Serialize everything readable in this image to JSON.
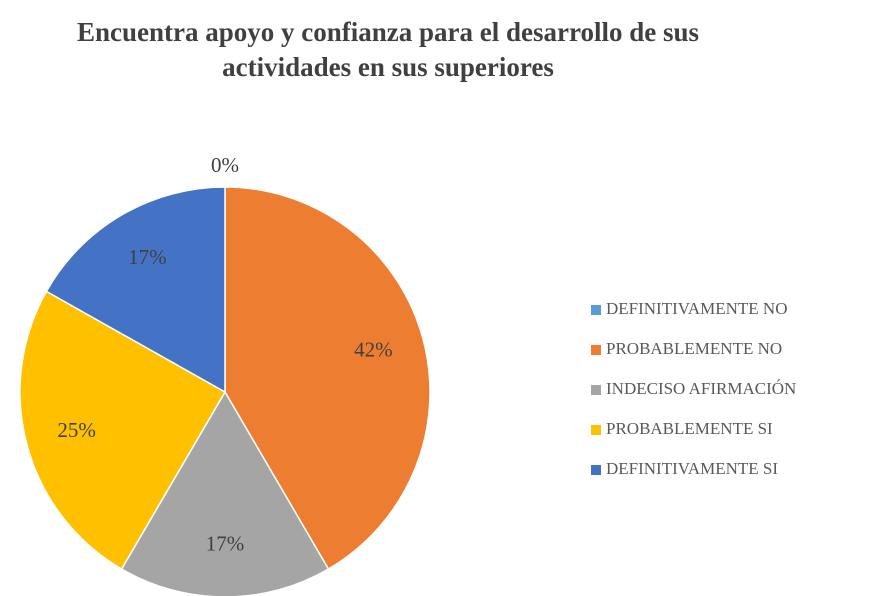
{
  "chart_data": {
    "type": "pie",
    "title": [
      "Encuentra apoyo y confianza para el desarrollo de sus",
      "actividades en sus superiores"
    ],
    "categories": [
      "DEFINITIVAMENTE NO",
      "PROBABLEMENTE NO",
      "INDECISO AFIRMACIÓN",
      "PROBABLEMENTE SI",
      "DEFINITIVAMENTE SI"
    ],
    "values": [
      0,
      42,
      17,
      25,
      17
    ],
    "value_labels": [
      "0%",
      "42%",
      "17%",
      "25%",
      "17%"
    ],
    "colors": [
      "#5b9bd5",
      "#ed7d31",
      "#a5a5a5",
      "#ffc000",
      "#4472c4"
    ],
    "legend": "right"
  }
}
